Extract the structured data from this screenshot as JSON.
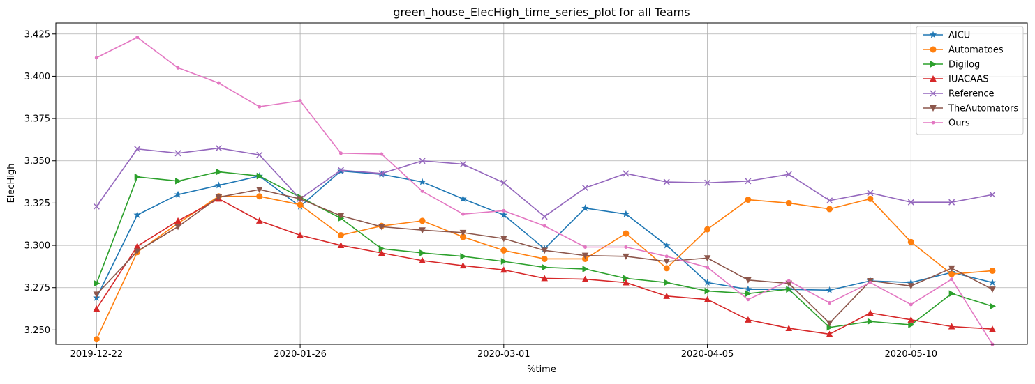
{
  "chart_data": {
    "type": "line",
    "title": "green_house_ElecHigh_time_series_plot for all Teams",
    "xlabel": "%time",
    "ylabel": "ElecHigh",
    "x": [
      "2019-12-22",
      "2019-12-29",
      "2020-01-05",
      "2020-01-12",
      "2020-01-19",
      "2020-01-26",
      "2020-02-02",
      "2020-02-09",
      "2020-02-16",
      "2020-02-23",
      "2020-03-01",
      "2020-03-08",
      "2020-03-15",
      "2020-03-22",
      "2020-03-29",
      "2020-04-05",
      "2020-04-12",
      "2020-04-19",
      "2020-04-26",
      "2020-05-03",
      "2020-05-10",
      "2020-05-17",
      "2020-05-24"
    ],
    "x_ticks": [
      "2019-12-22",
      "2020-01-26",
      "2020-03-01",
      "2020-04-05",
      "2020-05-10"
    ],
    "xlim": [
      "2019-12-15",
      "2020-05-30"
    ],
    "y_ticks": [
      "3.250",
      "3.275",
      "3.300",
      "3.325",
      "3.350",
      "3.375",
      "3.400",
      "3.425"
    ],
    "ylim": [
      3.2415,
      3.4315
    ],
    "grid": true,
    "legend_position": "top-right",
    "series": [
      {
        "name": "AICU",
        "color": "#1f77b4",
        "marker": "star",
        "values": [
          3.269,
          3.318,
          3.33,
          3.3355,
          3.341,
          3.323,
          3.344,
          3.342,
          3.3375,
          3.3275,
          3.318,
          3.298,
          3.322,
          3.3185,
          3.3,
          3.278,
          3.274,
          3.274,
          3.2735,
          3.279,
          3.278,
          3.284,
          3.278
        ]
      },
      {
        "name": "Automatoes",
        "color": "#ff7f0e",
        "marker": "circle",
        "values": [
          3.2445,
          3.296,
          3.313,
          3.329,
          3.329,
          3.324,
          3.306,
          3.3115,
          3.3145,
          3.305,
          3.297,
          3.292,
          3.292,
          3.307,
          3.2865,
          3.3095,
          3.327,
          3.325,
          3.3215,
          3.3275,
          3.302,
          3.283,
          3.285
        ]
      },
      {
        "name": "Digilog",
        "color": "#2ca02c",
        "marker": "triangle-right",
        "values": [
          3.2775,
          3.3405,
          3.338,
          3.3435,
          3.341,
          3.3285,
          3.316,
          3.298,
          3.2955,
          3.2935,
          3.2905,
          3.287,
          3.286,
          3.2805,
          3.278,
          3.273,
          3.2715,
          3.274,
          3.2515,
          3.255,
          3.253,
          3.2715,
          3.264
        ]
      },
      {
        "name": "IUACAAS",
        "color": "#d62728",
        "marker": "triangle-up",
        "values": [
          3.2625,
          3.2995,
          3.3145,
          3.3275,
          3.3145,
          3.306,
          3.3,
          3.2955,
          3.291,
          3.288,
          3.2855,
          3.2805,
          3.28,
          3.278,
          3.27,
          3.268,
          3.256,
          3.251,
          3.2475,
          3.26,
          3.256,
          3.252,
          3.2505
        ]
      },
      {
        "name": "Reference",
        "color": "#9467bd",
        "marker": "x",
        "values": [
          3.323,
          3.357,
          3.3545,
          3.3575,
          3.3535,
          3.3275,
          3.3445,
          3.3425,
          3.35,
          3.348,
          3.337,
          3.317,
          3.334,
          3.3425,
          3.3375,
          3.337,
          3.338,
          3.342,
          3.3265,
          3.331,
          3.3255,
          3.3255,
          3.33
        ]
      },
      {
        "name": "TheAutomators",
        "color": "#8c564b",
        "marker": "triangle-down",
        "values": [
          3.271,
          3.2965,
          3.311,
          3.3285,
          3.333,
          3.3275,
          3.3175,
          3.311,
          3.309,
          3.3075,
          3.304,
          3.297,
          3.294,
          3.2935,
          3.2905,
          3.2925,
          3.2795,
          3.2775,
          3.254,
          3.279,
          3.276,
          3.2865,
          3.274
        ]
      },
      {
        "name": "Ours",
        "color": "#e377c2",
        "marker": "dot",
        "values": [
          3.411,
          3.423,
          3.405,
          3.396,
          3.382,
          3.3855,
          3.3545,
          3.354,
          3.332,
          3.3185,
          3.3205,
          3.3115,
          3.299,
          3.299,
          3.2935,
          3.287,
          3.268,
          3.279,
          3.266,
          3.278,
          3.265,
          3.28,
          3.2415
        ]
      }
    ]
  }
}
